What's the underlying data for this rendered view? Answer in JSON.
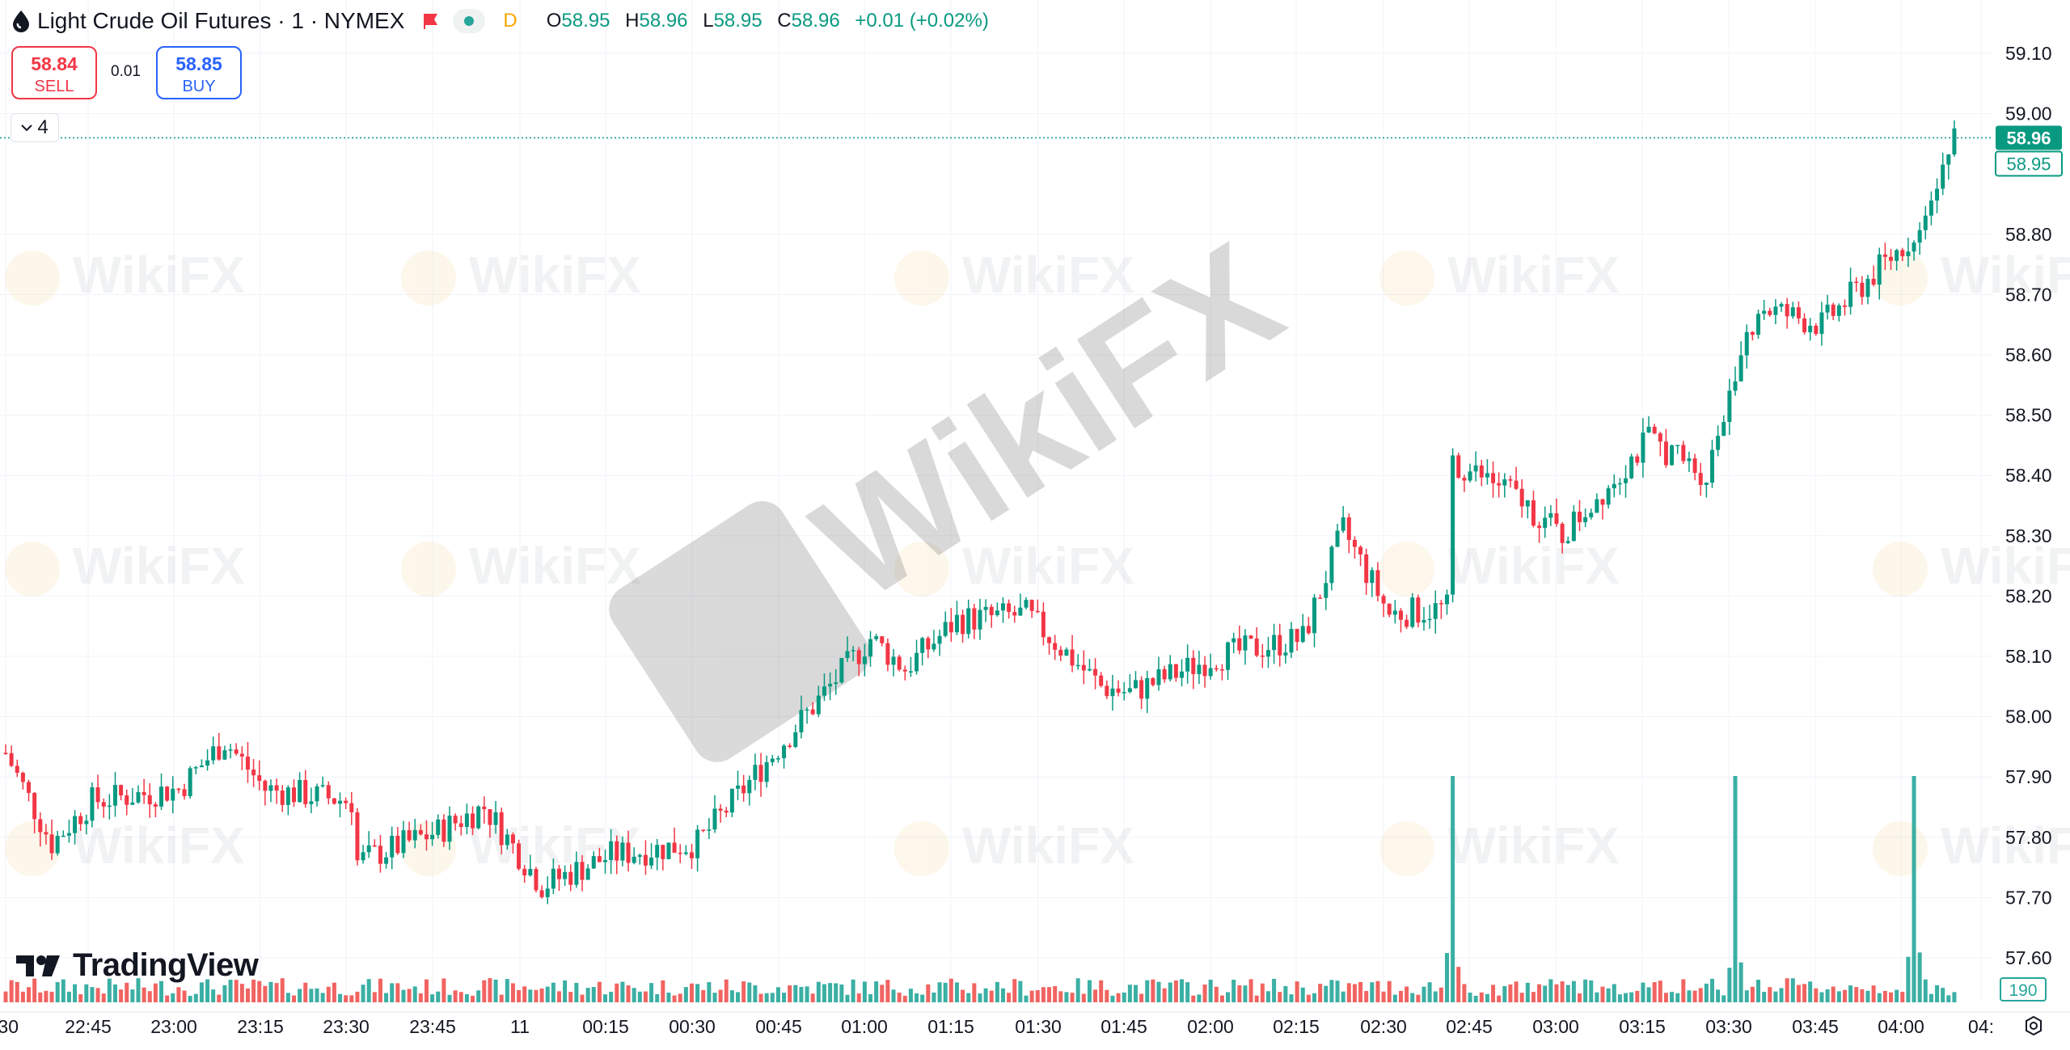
{
  "header": {
    "title": "Light Crude Oil Futures · 1 · NYMEX",
    "interval_badge": "D",
    "ohlc": [
      {
        "key": "O",
        "value": "58.95"
      },
      {
        "key": "H",
        "value": "58.96"
      },
      {
        "key": "L",
        "value": "58.95"
      },
      {
        "key": "C",
        "value": "58.96"
      }
    ],
    "change": "+0.01 (+0.02%)"
  },
  "trade": {
    "sell_price": "58.84",
    "sell_label": "SELL",
    "spread": "0.01",
    "buy_price": "58.85",
    "buy_label": "BUY"
  },
  "indicator_toggle": {
    "count": "4"
  },
  "watermark": "WikiFX",
  "branding": {
    "logo_text": "TradingView"
  },
  "colors": {
    "up": "#089981",
    "down": "#f23645",
    "vol_up": "#26a69a",
    "vol_down": "#ef5350",
    "grid": "#f0f3fa",
    "last_price": "#089981"
  },
  "chart_data": {
    "type": "candlestick",
    "interval": "1 minute",
    "y_axis": {
      "ticks": [
        "59.10",
        "59.00",
        "58.80",
        "58.70",
        "58.60",
        "58.50",
        "58.40",
        "58.30",
        "58.20",
        "58.10",
        "58.00",
        "57.90",
        "57.80",
        "57.70",
        "57.60"
      ],
      "range": [
        57.58,
        59.13
      ]
    },
    "x_axis": {
      "ticks": [
        ":30",
        "22:45",
        "23:00",
        "23:15",
        "23:30",
        "23:45",
        "11",
        "00:15",
        "00:30",
        "00:45",
        "01:00",
        "01:15",
        "01:30",
        "01:45",
        "02:00",
        "02:15",
        "02:30",
        "02:45",
        "03:00",
        "03:15",
        "03:30",
        "03:45",
        "04:00",
        "04:"
      ]
    },
    "last_price_labels": [
      "58.96",
      "58.95"
    ],
    "volume_label": "190",
    "close_path": [
      {
        "time": "22:30",
        "price": 57.94
      },
      {
        "time": "22:38",
        "price": 57.79
      },
      {
        "time": "22:45",
        "price": 57.86
      },
      {
        "time": "23:00",
        "price": 57.88
      },
      {
        "time": "23:08",
        "price": 57.96
      },
      {
        "time": "23:15",
        "price": 57.88
      },
      {
        "time": "23:30",
        "price": 57.86
      },
      {
        "time": "23:31",
        "price": 57.76
      },
      {
        "time": "23:45",
        "price": 57.81
      },
      {
        "time": "23:53",
        "price": 57.85
      },
      {
        "time": "00:03",
        "price": 57.72
      },
      {
        "time": "00:15",
        "price": 57.77
      },
      {
        "time": "00:30",
        "price": 57.79
      },
      {
        "time": "00:45",
        "price": 57.96
      },
      {
        "time": "01:00",
        "price": 58.13
      },
      {
        "time": "01:06",
        "price": 58.08
      },
      {
        "time": "01:15",
        "price": 58.16
      },
      {
        "time": "01:27",
        "price": 58.17
      },
      {
        "time": "01:40",
        "price": 58.05
      },
      {
        "time": "01:45",
        "price": 58.04
      },
      {
        "time": "02:00",
        "price": 58.1
      },
      {
        "time": "02:15",
        "price": 58.13
      },
      {
        "time": "02:22",
        "price": 58.31
      },
      {
        "time": "02:30",
        "price": 58.17
      },
      {
        "time": "02:40",
        "price": 58.18
      },
      {
        "time": "02:41",
        "price": 58.42
      },
      {
        "time": "02:50",
        "price": 58.38
      },
      {
        "time": "03:00",
        "price": 58.3
      },
      {
        "time": "03:15",
        "price": 58.46
      },
      {
        "time": "03:25",
        "price": 58.4
      },
      {
        "time": "03:30",
        "price": 58.58
      },
      {
        "time": "03:34",
        "price": 58.68
      },
      {
        "time": "03:45",
        "price": 58.65
      },
      {
        "time": "04:00",
        "price": 58.79
      },
      {
        "time": "04:03",
        "price": 58.85
      },
      {
        "time": "04:08",
        "price": 58.96
      }
    ],
    "volume_spikes": [
      {
        "time": "02:41",
        "level": "high"
      },
      {
        "time": "03:30",
        "level": "high"
      },
      {
        "time": "04:01",
        "level": "high"
      }
    ]
  }
}
